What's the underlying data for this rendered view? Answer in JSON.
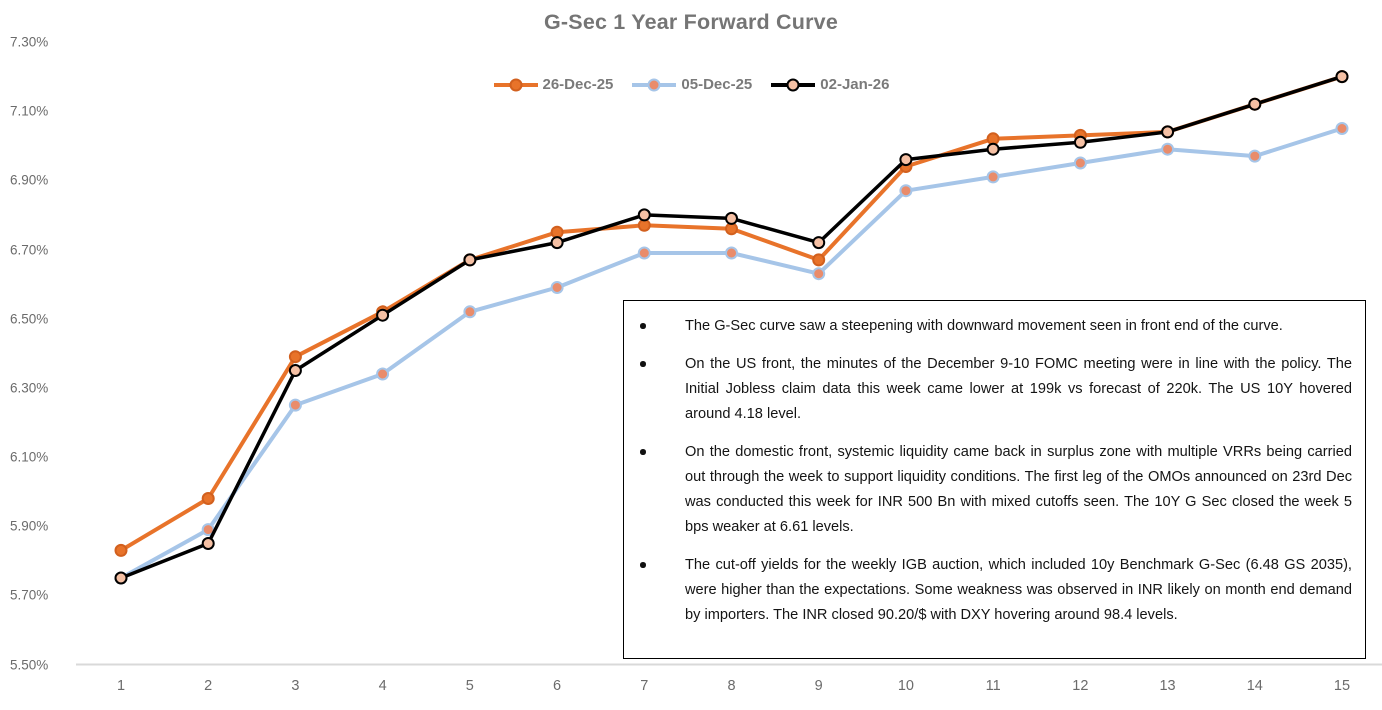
{
  "chart_data": {
    "type": "line",
    "title": "G-Sec 1 Year Forward Curve",
    "xlabel": "",
    "ylabel": "",
    "categories": [
      "1",
      "2",
      "3",
      "4",
      "5",
      "6",
      "7",
      "8",
      "9",
      "10",
      "11",
      "12",
      "13",
      "14",
      "15"
    ],
    "ylim": [
      5.5,
      7.3
    ],
    "grid": false,
    "legend_position": "top-center",
    "y_ticks": [
      {
        "v": 5.5,
        "label": "5.50%"
      },
      {
        "v": 5.7,
        "label": "5.70%"
      },
      {
        "v": 5.9,
        "label": "5.90%"
      },
      {
        "v": 6.1,
        "label": "6.10%"
      },
      {
        "v": 6.3,
        "label": "6.30%"
      },
      {
        "v": 6.5,
        "label": "6.50%"
      },
      {
        "v": 6.7,
        "label": "6.70%"
      },
      {
        "v": 6.9,
        "label": "6.90%"
      },
      {
        "v": 7.1,
        "label": "7.10%"
      },
      {
        "v": 7.3,
        "label": "7.30%"
      }
    ],
    "series": [
      {
        "name": "05-Dec-25",
        "line_color": "#A6C5E8",
        "line_width": 4,
        "marker_fill": "#E98C6B",
        "marker_stroke": "#A6C5E8",
        "values": [
          5.75,
          5.89,
          6.25,
          6.34,
          6.52,
          6.59,
          6.69,
          6.69,
          6.63,
          6.87,
          6.91,
          6.95,
          6.99,
          6.97,
          7.05
        ]
      },
      {
        "name": "26-Dec-25",
        "line_color": "#E8732A",
        "line_width": 4,
        "marker_fill": "#E8732A",
        "marker_stroke": "#D2601E",
        "values": [
          5.83,
          5.98,
          6.39,
          6.52,
          6.67,
          6.75,
          6.77,
          6.76,
          6.67,
          6.94,
          7.02,
          7.03,
          7.04,
          7.12,
          7.2
        ]
      },
      {
        "name": "02-Jan-26",
        "line_color": "#000000",
        "line_width": 3.5,
        "marker_fill": "#F5C0A4",
        "marker_stroke": "#000000",
        "values": [
          5.75,
          5.85,
          6.35,
          6.51,
          6.67,
          6.72,
          6.8,
          6.79,
          6.72,
          6.96,
          6.99,
          7.01,
          7.04,
          7.12,
          7.2
        ]
      }
    ],
    "legend_order": [
      "26-Dec-25",
      "05-Dec-25",
      "02-Jan-26"
    ],
    "axis_line_color": "#D9D9D9"
  },
  "notes": {
    "bullets": [
      "The G-Sec curve saw a steepening with downward movement seen in front end of the curve.",
      "On the US front, the minutes of the December 9-10 FOMC meeting were in line with the policy. The Initial Jobless claim data this week came lower at 199k vs forecast of 220k. The US 10Y hovered around 4.18 level.",
      "On the domestic front, systemic liquidity came back in surplus zone with multiple VRRs being carried out through the week to support liquidity conditions. The first leg of the OMOs announced on 23rd Dec was conducted this week for INR 500 Bn with mixed cutoffs seen. The 10Y G Sec closed the week 5 bps weaker at 6.61 levels.",
      "The cut-off yields for the weekly IGB auction, which included 10y Benchmark G-Sec (6.48 GS 2035), were higher than the expectations. Some weakness was observed in INR likely on month end demand by importers. The INR closed 90.20/$ with DXY hovering around 98.4 levels."
    ]
  }
}
